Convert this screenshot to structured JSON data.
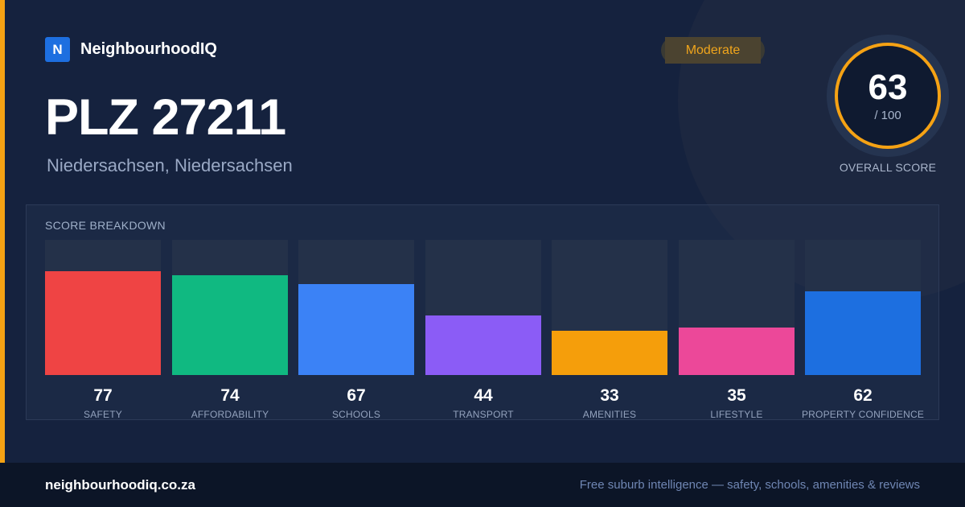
{
  "brand": {
    "logo_letter": "N",
    "name": "NeighbourhoodIQ"
  },
  "title": "PLZ 27211",
  "subtitle": "Niedersachsen, Niedersachsen",
  "badge": "Moderate",
  "overall": {
    "value": "63",
    "max": "/ 100",
    "label": "OVERALL SCORE"
  },
  "breakdown": {
    "title": "SCORE BREAKDOWN",
    "items": [
      {
        "label": "SAFETY",
        "value": 77,
        "color": "#ef4444"
      },
      {
        "label": "AFFORDABILITY",
        "value": 74,
        "color": "#10b981"
      },
      {
        "label": "SCHOOLS",
        "value": 67,
        "color": "#3b82f6"
      },
      {
        "label": "TRANSPORT",
        "value": 44,
        "color": "#8b5cf6"
      },
      {
        "label": "AMENITIES",
        "value": 33,
        "color": "#f59e0b"
      },
      {
        "label": "LIFESTYLE",
        "value": 35,
        "color": "#ec4899"
      },
      {
        "label": "PROPERTY CONFIDENCE",
        "value": 62,
        "color": "#1d6fe0"
      }
    ]
  },
  "footer": {
    "url": "neighbourhoodiq.co.za",
    "tagline": "Free suburb intelligence — safety, schools, amenities & reviews"
  },
  "colors": {
    "accent": "#f5a214",
    "background": "#15223e",
    "footer": "#0c1527"
  }
}
